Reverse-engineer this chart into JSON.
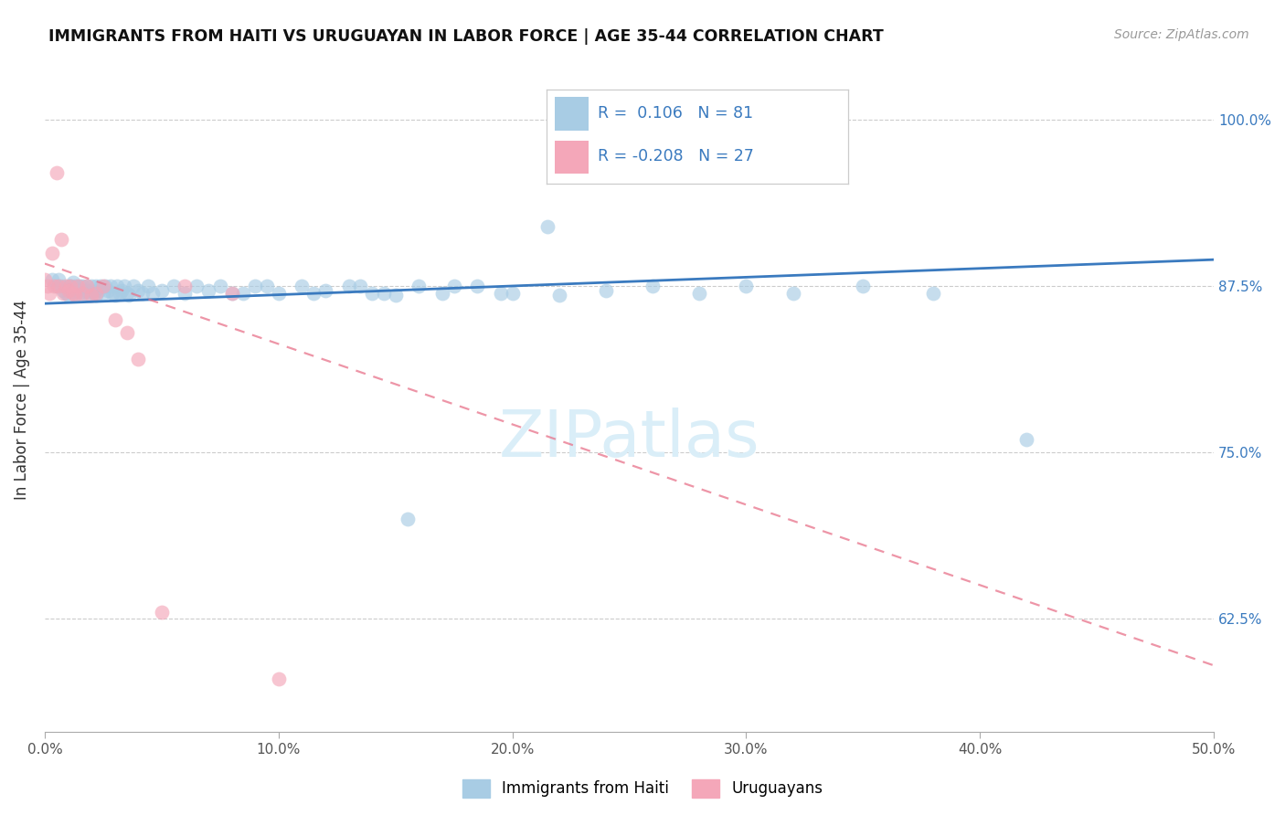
{
  "title": "IMMIGRANTS FROM HAITI VS URUGUAYAN IN LABOR FORCE | AGE 35-44 CORRELATION CHART",
  "source": "Source: ZipAtlas.com",
  "ylabel": "In Labor Force | Age 35-44",
  "xlim": [
    0.0,
    0.5
  ],
  "ylim": [
    0.54,
    1.04
  ],
  "yticks": [
    0.625,
    0.75,
    0.875,
    1.0
  ],
  "ytick_labels": [
    "62.5%",
    "75.0%",
    "87.5%",
    "100.0%"
  ],
  "xticks": [
    0.0,
    0.1,
    0.2,
    0.3,
    0.4,
    0.5
  ],
  "xtick_labels": [
    "0.0%",
    "10.0%",
    "20.0%",
    "30.0%",
    "40.0%",
    "50.0%"
  ],
  "blue_color": "#a8cce4",
  "pink_color": "#f4a7b9",
  "blue_line_color": "#3a7abf",
  "pink_line_color": "#e8728a",
  "watermark": "ZIPatlas",
  "watermark_color": "#daeef8",
  "legend_r1": "R =  0.106",
  "legend_n1": "N = 81",
  "legend_r2": "R = -0.208",
  "legend_n2": "N = 27",
  "legend_text_color": "#3a7abf",
  "haiti_x": [
    0.003,
    0.005,
    0.006,
    0.007,
    0.008,
    0.009,
    0.01,
    0.01,
    0.011,
    0.012,
    0.013,
    0.013,
    0.014,
    0.015,
    0.015,
    0.016,
    0.017,
    0.018,
    0.018,
    0.019,
    0.02,
    0.021,
    0.022,
    0.022,
    0.023,
    0.024,
    0.025,
    0.026,
    0.027,
    0.028,
    0.029,
    0.03,
    0.031,
    0.032,
    0.033,
    0.034,
    0.035,
    0.036,
    0.038,
    0.04,
    0.042,
    0.044,
    0.046,
    0.05,
    0.055,
    0.06,
    0.065,
    0.07,
    0.075,
    0.08,
    0.09,
    0.1,
    0.11,
    0.12,
    0.13,
    0.14,
    0.15,
    0.16,
    0.17,
    0.185,
    0.2,
    0.22,
    0.24,
    0.26,
    0.28,
    0.3,
    0.32,
    0.35,
    0.38,
    0.42,
    0.25,
    0.255,
    0.215,
    0.195,
    0.175,
    0.155,
    0.145,
    0.135,
    0.115,
    0.095,
    0.085
  ],
  "haiti_y": [
    0.88,
    0.875,
    0.88,
    0.875,
    0.872,
    0.87,
    0.875,
    0.868,
    0.875,
    0.878,
    0.87,
    0.875,
    0.872,
    0.875,
    0.87,
    0.875,
    0.87,
    0.875,
    0.872,
    0.868,
    0.875,
    0.87,
    0.868,
    0.875,
    0.872,
    0.875,
    0.87,
    0.875,
    0.872,
    0.875,
    0.87,
    0.868,
    0.875,
    0.87,
    0.872,
    0.875,
    0.87,
    0.868,
    0.875,
    0.872,
    0.87,
    0.875,
    0.87,
    0.872,
    0.875,
    0.87,
    0.875,
    0.872,
    0.875,
    0.87,
    0.875,
    0.87,
    0.875,
    0.872,
    0.875,
    0.87,
    0.868,
    0.875,
    0.87,
    0.875,
    0.87,
    0.868,
    0.872,
    0.875,
    0.87,
    0.875,
    0.87,
    0.875,
    0.87,
    0.76,
    1.0,
    1.0,
    0.92,
    0.87,
    0.875,
    0.7,
    0.87,
    0.875,
    0.87,
    0.875,
    0.87
  ],
  "uruguay_x": [
    0.0,
    0.001,
    0.002,
    0.003,
    0.004,
    0.005,
    0.006,
    0.007,
    0.008,
    0.009,
    0.01,
    0.011,
    0.012,
    0.013,
    0.014,
    0.016,
    0.018,
    0.02,
    0.022,
    0.025,
    0.03,
    0.035,
    0.04,
    0.05,
    0.06,
    0.08,
    0.1
  ],
  "uruguay_y": [
    0.88,
    0.875,
    0.87,
    0.9,
    0.875,
    0.96,
    0.875,
    0.91,
    0.87,
    0.875,
    0.872,
    0.875,
    0.87,
    0.868,
    0.875,
    0.87,
    0.875,
    0.868,
    0.87,
    0.875,
    0.85,
    0.84,
    0.82,
    0.63,
    0.875,
    0.87,
    0.58
  ],
  "blue_trend_x": [
    0.0,
    0.5
  ],
  "blue_trend_y": [
    0.862,
    0.895
  ],
  "pink_trend_x": [
    0.0,
    0.5
  ],
  "pink_trend_y": [
    0.892,
    0.59
  ]
}
